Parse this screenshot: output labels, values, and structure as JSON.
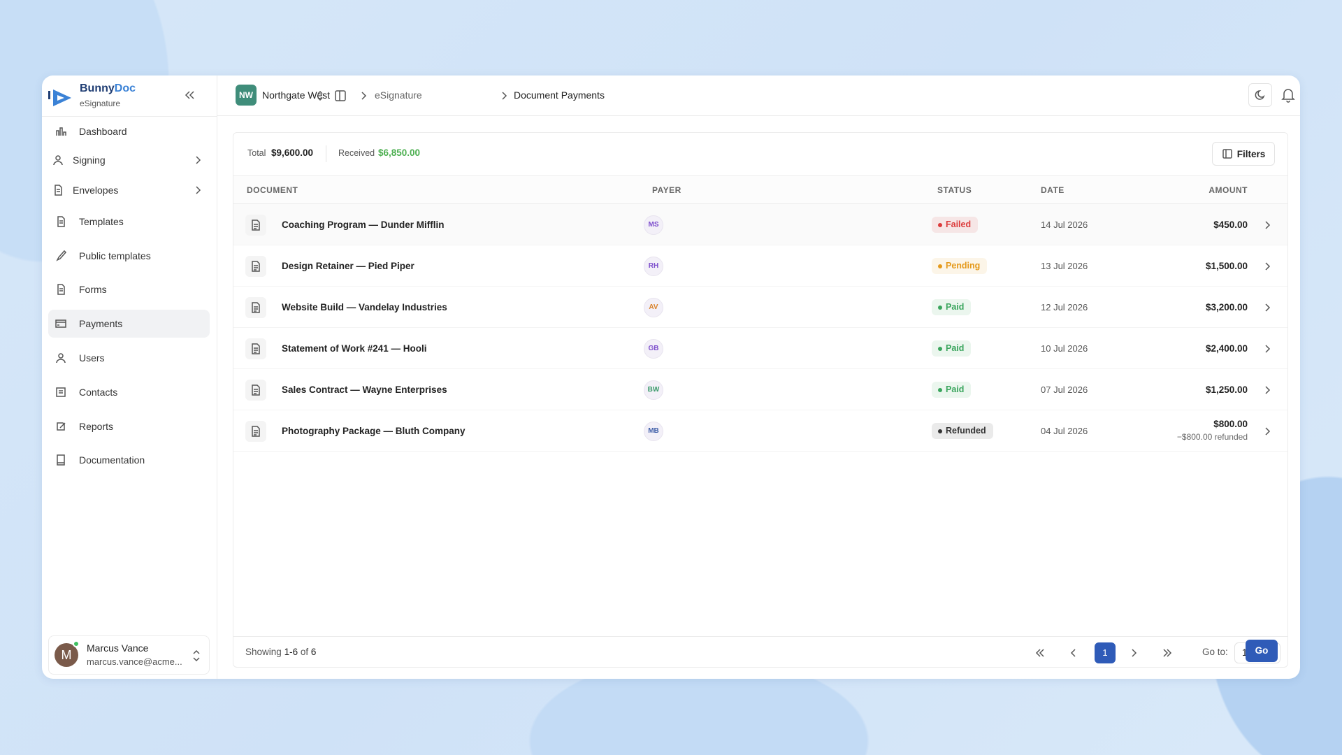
{
  "brand": {
    "name_start": "Bunny",
    "name_end": "Doc",
    "product": "eSignature"
  },
  "workspace": {
    "initials": "NW",
    "name": "Northgate West"
  },
  "breadcrumb": [
    "eSignature",
    "Document Payments"
  ],
  "nav": [
    {
      "label": "Dashboard"
    },
    {
      "label": "Signing",
      "expandable": true
    },
    {
      "label": "Envelopes",
      "expandable": true
    },
    {
      "label": "Templates"
    },
    {
      "label": "Public templates"
    },
    {
      "label": "Forms"
    },
    {
      "label": "Payments",
      "active": true
    },
    {
      "label": "Users"
    },
    {
      "label": "Contacts"
    },
    {
      "label": "Reports"
    },
    {
      "label": "Documentation"
    }
  ],
  "user": {
    "initial": "M",
    "name": "Marcus Vance",
    "email": "marcus.vance@acme..."
  },
  "summary": {
    "total_label": "Total",
    "total": "$9,600.00",
    "received_label": "Received",
    "received": "$6,850.00",
    "filters": "Filters"
  },
  "table": {
    "columns": [
      "DOCUMENT",
      "PAYER",
      "STATUS",
      "DATE",
      "AMOUNT"
    ],
    "rows": [
      {
        "document": "Coaching Program — Dunder Mifflin",
        "payer": "MS",
        "payer_color": "#7c4dcc",
        "status": "Failed",
        "status_color": "#dc3b3b",
        "date": "14 Jul 2026",
        "amount": "$450.00"
      },
      {
        "document": "Design Retainer — Pied Piper",
        "payer": "RH",
        "payer_color": "#7c4dcc",
        "status": "Pending",
        "status_color": "#e59a1c",
        "date": "13 Jul 2026",
        "amount": "$1,500.00"
      },
      {
        "document": "Website Build — Vandelay Industries",
        "payer": "AV",
        "payer_color": "#d9822b",
        "status": "Paid",
        "status_color": "#3aa55d",
        "date": "12 Jul 2026",
        "amount": "$3,200.00"
      },
      {
        "document": "Statement of Work #241 — Hooli",
        "payer": "GB",
        "payer_color": "#7c4dcc",
        "status": "Paid",
        "status_color": "#3aa55d",
        "date": "10 Jul 2026",
        "amount": "$2,400.00"
      },
      {
        "document": "Sales Contract — Wayne Enterprises",
        "payer": "BW",
        "payer_color": "#3a9a6a",
        "status": "Paid",
        "status_color": "#3aa55d",
        "date": "07 Jul 2026",
        "amount": "$1,250.00"
      },
      {
        "document": "Photography Package — Bluth Company",
        "payer": "MB",
        "payer_color": "#3f5fa8",
        "status": "Refunded",
        "status_color": "#333333",
        "date": "04 Jul 2026",
        "amount": "$800.00",
        "note": "−$800.00 refunded"
      }
    ]
  },
  "pagination": {
    "showing": "Showing",
    "range": "1-6",
    "of": "of",
    "total": "6",
    "current": "1",
    "goto_label": "Go to:",
    "goto_value": "1",
    "go": "Go"
  }
}
